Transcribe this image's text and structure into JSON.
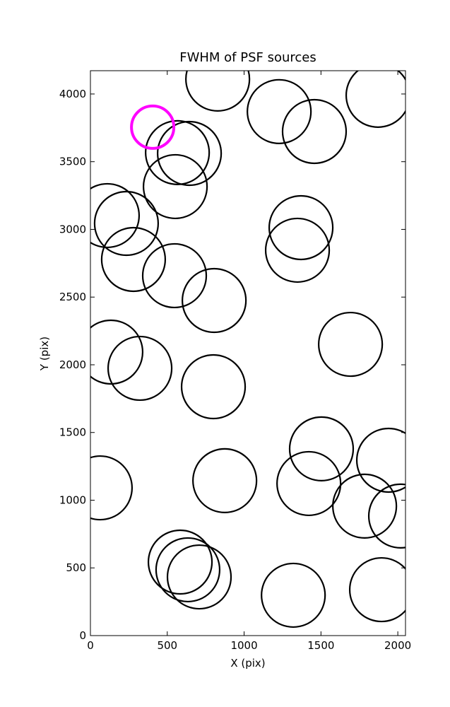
{
  "chart_data": {
    "type": "scatter",
    "title": "FWHM of PSF sources",
    "x_label": "X (pix)",
    "y_label": "Y (pix)",
    "xlim": [
      0,
      2050
    ],
    "ylim": [
      0,
      4172
    ],
    "xticks": [
      0,
      500,
      1000,
      1500,
      2000
    ],
    "yticks": [
      0,
      500,
      1000,
      1500,
      2000,
      2500,
      3000,
      3500,
      4000
    ],
    "grid": false,
    "series": [
      {
        "color": "#000000",
        "x": [
          828,
          1871,
          1228,
          1457,
          566,
          644,
          552,
          110,
          234,
          1370,
          1347,
          280,
          547,
          805,
          133,
          322,
          1692,
          800,
          1503,
          1940,
          1421,
          64,
          874,
          1784,
          2018,
          584,
          634,
          708,
          1320,
          1894
        ],
        "values": [
          4110,
          3990,
          3870,
          3723,
          3567,
          3561,
          3316,
          3102,
          3044,
          3013,
          2846,
          2778,
          2658,
          2475,
          2094,
          1974,
          2151,
          1838,
          1379,
          1295,
          1123,
          1091,
          1144,
          956,
          883,
          543,
          486,
          433,
          298,
          339
        ]
      },
      {
        "color": "#ff00ff",
        "x": [
          405
        ],
        "values": [
          3755
        ]
      }
    ]
  }
}
